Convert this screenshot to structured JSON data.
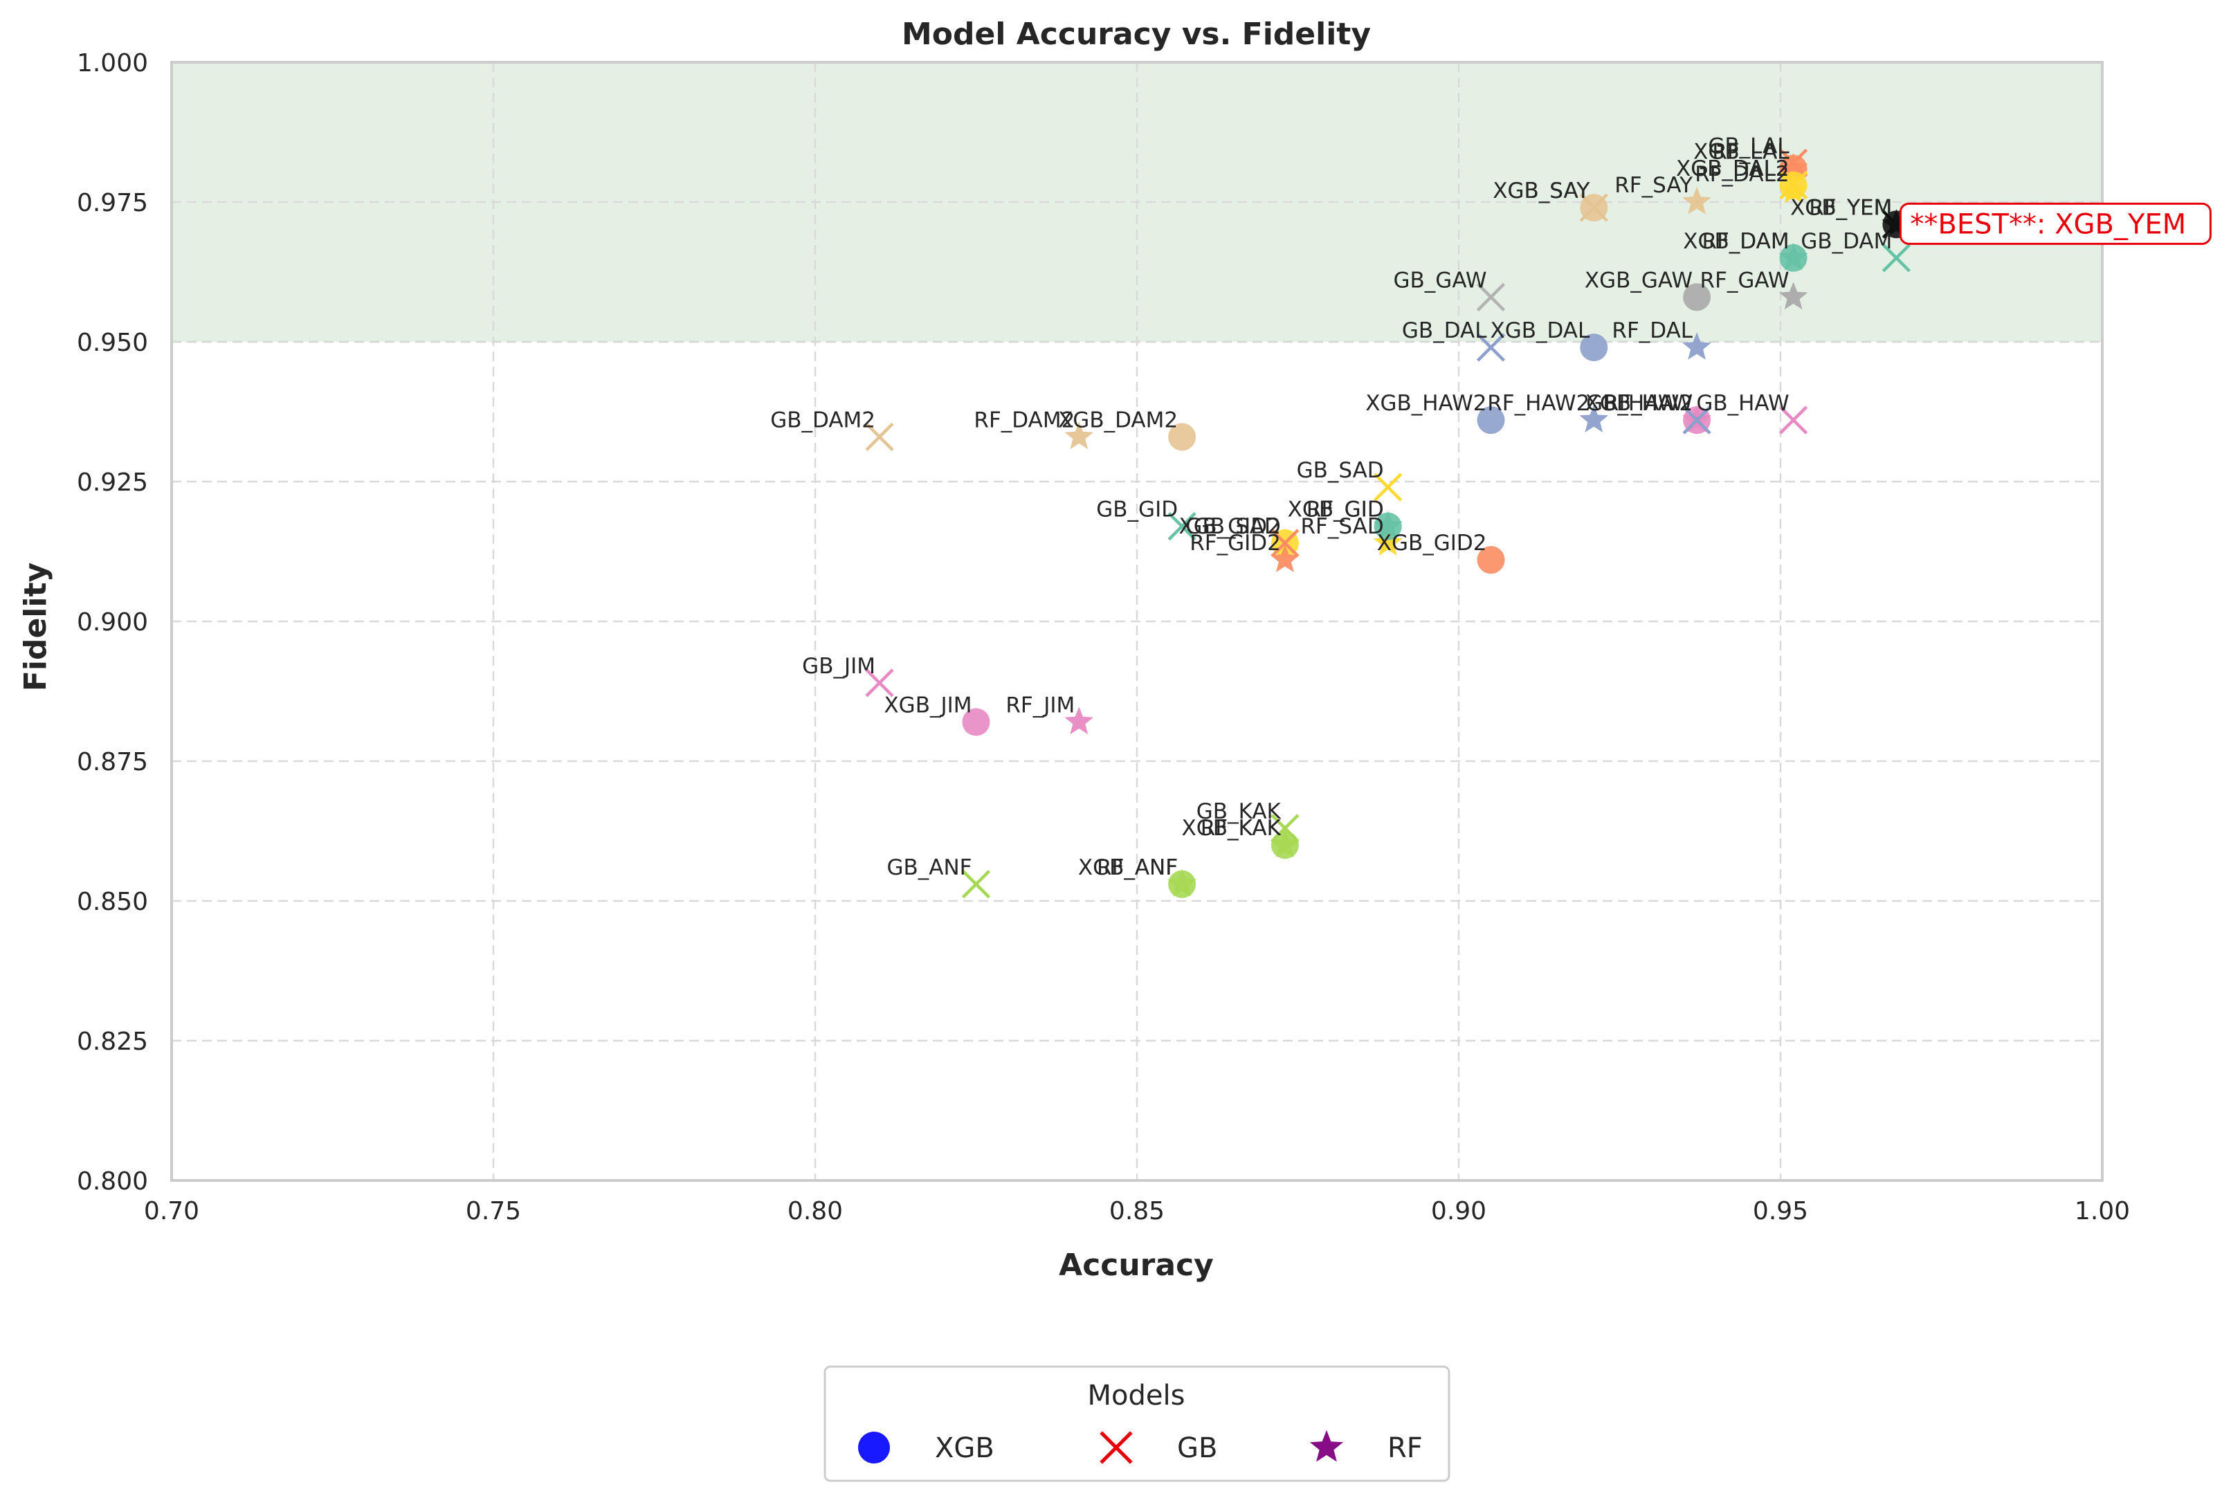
{
  "chart_data": {
    "type": "scatter",
    "title": "Model Accuracy vs. Fidelity",
    "xlabel": "Accuracy",
    "ylabel": "Fidelity",
    "xlim": [
      0.7,
      1.0
    ],
    "ylim": [
      0.8,
      1.0
    ],
    "x_ticks": [
      "0.70",
      "0.75",
      "0.80",
      "0.85",
      "0.90",
      "0.95",
      "1.00"
    ],
    "y_ticks": [
      "0.800",
      "0.825",
      "0.850",
      "0.875",
      "0.900",
      "0.925",
      "0.950",
      "0.975",
      "1.000"
    ],
    "grid": true,
    "highlight_band": {
      "y_from": 0.95,
      "y_to": 1.0,
      "color": "#d9ead9"
    },
    "best": {
      "label": "**BEST**: XGB_YEM",
      "x": 0.968,
      "y": 0.971,
      "color": "#e8000b"
    },
    "legend": {
      "title": "Models",
      "placement": "bottom-center",
      "entries": [
        {
          "name": "XGB",
          "marker": "circle",
          "color": "#0000ff"
        },
        {
          "name": "GB",
          "marker": "x",
          "color": "#e8000b"
        },
        {
          "name": "RF",
          "marker": "star",
          "color": "#800080"
        }
      ]
    },
    "points": [
      {
        "label": "XGB_LAL",
        "model": "XGB",
        "x": 0.952,
        "y": 0.981,
        "color": "#fc8d62"
      },
      {
        "label": "GB_LAL",
        "model": "GB",
        "x": 0.952,
        "y": 0.982,
        "color": "#fc8d62"
      },
      {
        "label": "RF_LAL",
        "model": "RF",
        "x": 0.952,
        "y": 0.981,
        "color": "#fc8d62"
      },
      {
        "label": "XGB_DAL2",
        "model": "XGB",
        "x": 0.952,
        "y": 0.978,
        "color": "#ffd92f"
      },
      {
        "label": "GB_DAL2",
        "model": "GB",
        "x": 0.952,
        "y": 0.978,
        "color": "#ffd92f"
      },
      {
        "label": "RF_DAL2",
        "model": "RF",
        "x": 0.952,
        "y": 0.977,
        "color": "#ffd92f"
      },
      {
        "label": "XGB_SAY",
        "model": "XGB",
        "x": 0.921,
        "y": 0.974,
        "color": "#e5c494"
      },
      {
        "label": "GB_SAY",
        "model": "GB",
        "x": 0.921,
        "y": 0.974,
        "color": "#e5c494"
      },
      {
        "label": "RF_SAY",
        "model": "RF",
        "x": 0.937,
        "y": 0.975,
        "color": "#e5c494"
      },
      {
        "label": "XGB_YEM",
        "model": "XGB",
        "x": 0.968,
        "y": 0.971,
        "color": "#111111"
      },
      {
        "label": "GB_YEM",
        "model": "GB",
        "x": 0.968,
        "y": 0.971,
        "color": "#111111"
      },
      {
        "label": "RF_YEM",
        "model": "RF",
        "x": 0.968,
        "y": 0.971,
        "color": "#111111"
      },
      {
        "label": "XGB_DAM",
        "model": "XGB",
        "x": 0.952,
        "y": 0.965,
        "color": "#66c2a5"
      },
      {
        "label": "GB_DAM",
        "model": "GB",
        "x": 0.968,
        "y": 0.965,
        "color": "#66c2a5"
      },
      {
        "label": "RF_DAM",
        "model": "RF",
        "x": 0.952,
        "y": 0.965,
        "color": "#66c2a5"
      },
      {
        "label": "GB_GAW",
        "model": "GB",
        "x": 0.905,
        "y": 0.958,
        "color": "#b3b3b3"
      },
      {
        "label": "XGB_GAW",
        "model": "XGB",
        "x": 0.937,
        "y": 0.958,
        "color": "#a9a9a9"
      },
      {
        "label": "RF_GAW",
        "model": "RF",
        "x": 0.952,
        "y": 0.958,
        "color": "#a9a9a9"
      },
      {
        "label": "GB_DAL",
        "model": "GB",
        "x": 0.905,
        "y": 0.949,
        "color": "#8da0cb"
      },
      {
        "label": "XGB_DAL",
        "model": "XGB",
        "x": 0.921,
        "y": 0.949,
        "color": "#8da0cb"
      },
      {
        "label": "RF_DAL",
        "model": "RF",
        "x": 0.937,
        "y": 0.949,
        "color": "#8da0cb"
      },
      {
        "label": "XGB_HAW",
        "model": "XGB",
        "x": 0.937,
        "y": 0.936,
        "color": "#e78ac3"
      },
      {
        "label": "GB_HAW",
        "model": "GB",
        "x": 0.952,
        "y": 0.936,
        "color": "#e78ac3"
      },
      {
        "label": "RF_HAW",
        "model": "RF",
        "x": 0.937,
        "y": 0.936,
        "color": "#e78ac3"
      },
      {
        "label": "XGB_HAW2",
        "model": "XGB",
        "x": 0.905,
        "y": 0.936,
        "color": "#8da0cb"
      },
      {
        "label": "GB_HAW2",
        "model": "GB",
        "x": 0.937,
        "y": 0.936,
        "color": "#8da0cb"
      },
      {
        "label": "RF_HAW2",
        "model": "RF",
        "x": 0.921,
        "y": 0.936,
        "color": "#8da0cb"
      },
      {
        "label": "GB_DAM2",
        "model": "GB",
        "x": 0.81,
        "y": 0.933,
        "color": "#e5c494"
      },
      {
        "label": "RF_DAM2",
        "model": "RF",
        "x": 0.841,
        "y": 0.933,
        "color": "#e5c494"
      },
      {
        "label": "XGB_DAM2",
        "model": "XGB",
        "x": 0.857,
        "y": 0.933,
        "color": "#e5c494"
      },
      {
        "label": "GB_SAD",
        "model": "GB",
        "x": 0.889,
        "y": 0.924,
        "color": "#ffd92f"
      },
      {
        "label": "XGB_SAD",
        "model": "XGB",
        "x": 0.873,
        "y": 0.914,
        "color": "#ffd92f"
      },
      {
        "label": "RF_SAD",
        "model": "RF",
        "x": 0.889,
        "y": 0.914,
        "color": "#ffd92f"
      },
      {
        "label": "GB_GID",
        "model": "GB",
        "x": 0.857,
        "y": 0.917,
        "color": "#66c2a5"
      },
      {
        "label": "XGB_GID",
        "model": "XGB",
        "x": 0.889,
        "y": 0.917,
        "color": "#66c2a5"
      },
      {
        "label": "RF_GID",
        "model": "RF",
        "x": 0.889,
        "y": 0.917,
        "color": "#66c2a5"
      },
      {
        "label": "GB_GID2",
        "model": "GB",
        "x": 0.873,
        "y": 0.914,
        "color": "#fc8d62"
      },
      {
        "label": "RF_GID2",
        "model": "RF",
        "x": 0.873,
        "y": 0.911,
        "color": "#fc8d62"
      },
      {
        "label": "XGB_GID2",
        "model": "XGB",
        "x": 0.905,
        "y": 0.911,
        "color": "#fc8d62"
      },
      {
        "label": "GB_JIM",
        "model": "GB",
        "x": 0.81,
        "y": 0.889,
        "color": "#e78ac3"
      },
      {
        "label": "XGB_JIM",
        "model": "XGB",
        "x": 0.825,
        "y": 0.882,
        "color": "#e78ac3"
      },
      {
        "label": "RF_JIM",
        "model": "RF",
        "x": 0.841,
        "y": 0.882,
        "color": "#e78ac3"
      },
      {
        "label": "GB_KAK",
        "model": "GB",
        "x": 0.873,
        "y": 0.863,
        "color": "#a6d854"
      },
      {
        "label": "XGB_KAK",
        "model": "XGB",
        "x": 0.873,
        "y": 0.86,
        "color": "#a6d854"
      },
      {
        "label": "RF_KAK",
        "model": "RF",
        "x": 0.873,
        "y": 0.86,
        "color": "#a6d854"
      },
      {
        "label": "GB_ANF",
        "model": "GB",
        "x": 0.825,
        "y": 0.853,
        "color": "#a6d854"
      },
      {
        "label": "XGB_ANF",
        "model": "XGB",
        "x": 0.857,
        "y": 0.853,
        "color": "#a6d854"
      },
      {
        "label": "RF_ANF",
        "model": "RF",
        "x": 0.857,
        "y": 0.853,
        "color": "#a6d854"
      }
    ]
  }
}
